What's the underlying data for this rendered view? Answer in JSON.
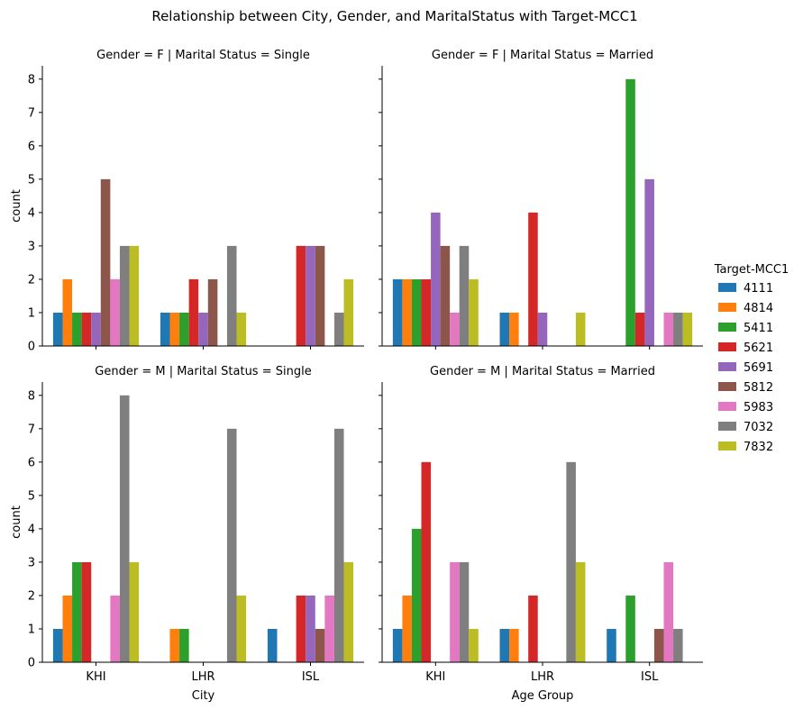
{
  "figure": {
    "title": "Relationship between City, Gender, and MaritalStatus with Target-MCC1"
  },
  "legend": {
    "title": "Target-MCC1",
    "placement": "right"
  },
  "series_colors": [
    "#1f77b4",
    "#ff7f0e",
    "#2ca02c",
    "#d62728",
    "#9467bd",
    "#8c564b",
    "#e377c2",
    "#7f7f7f",
    "#bcbd22"
  ],
  "chart_data": [
    {
      "type": "bar",
      "title": "Gender = F | Marital Status = Single",
      "xlabel": "",
      "ylabel": "count",
      "ylim": [
        0,
        8.4
      ],
      "yticks": [
        0,
        1,
        2,
        3,
        4,
        5,
        6,
        7,
        8
      ],
      "categories": [
        "KHI",
        "LHR",
        "ISL"
      ],
      "series": [
        {
          "name": "4111",
          "values": [
            1,
            1,
            0
          ]
        },
        {
          "name": "4814",
          "values": [
            2,
            1,
            0
          ]
        },
        {
          "name": "5411",
          "values": [
            1,
            1,
            0
          ]
        },
        {
          "name": "5621",
          "values": [
            1,
            2,
            3
          ]
        },
        {
          "name": "5691",
          "values": [
            1,
            1,
            3
          ]
        },
        {
          "name": "5812",
          "values": [
            5,
            2,
            3
          ]
        },
        {
          "name": "5983",
          "values": [
            2,
            0,
            0
          ]
        },
        {
          "name": "7032",
          "values": [
            3,
            3,
            1
          ]
        },
        {
          "name": "7832",
          "values": [
            3,
            1,
            2
          ]
        }
      ]
    },
    {
      "type": "bar",
      "title": "Gender = F | Marital Status = Married",
      "xlabel": "",
      "ylabel": "",
      "ylim": [
        0,
        8.4
      ],
      "yticks": [
        0,
        1,
        2,
        3,
        4,
        5,
        6,
        7,
        8
      ],
      "categories": [
        "KHI",
        "LHR",
        "ISL"
      ],
      "series": [
        {
          "name": "4111",
          "values": [
            2,
            1,
            0
          ]
        },
        {
          "name": "4814",
          "values": [
            2,
            1,
            0
          ]
        },
        {
          "name": "5411",
          "values": [
            2,
            0,
            8
          ]
        },
        {
          "name": "5621",
          "values": [
            2,
            4,
            1
          ]
        },
        {
          "name": "5691",
          "values": [
            4,
            1,
            5
          ]
        },
        {
          "name": "5812",
          "values": [
            3,
            0,
            0
          ]
        },
        {
          "name": "5983",
          "values": [
            1,
            0,
            1
          ]
        },
        {
          "name": "7032",
          "values": [
            3,
            0,
            1
          ]
        },
        {
          "name": "7832",
          "values": [
            2,
            1,
            1
          ]
        }
      ]
    },
    {
      "type": "bar",
      "title": "Gender = M | Marital Status = Single",
      "xlabel": "City",
      "ylabel": "count",
      "ylim": [
        0,
        8.4
      ],
      "yticks": [
        0,
        1,
        2,
        3,
        4,
        5,
        6,
        7,
        8
      ],
      "categories": [
        "KHI",
        "LHR",
        "ISL"
      ],
      "series": [
        {
          "name": "4111",
          "values": [
            1,
            0,
            1
          ]
        },
        {
          "name": "4814",
          "values": [
            2,
            1,
            0
          ]
        },
        {
          "name": "5411",
          "values": [
            3,
            1,
            0
          ]
        },
        {
          "name": "5621",
          "values": [
            3,
            0,
            2
          ]
        },
        {
          "name": "5691",
          "values": [
            0,
            0,
            2
          ]
        },
        {
          "name": "5812",
          "values": [
            0,
            0,
            1
          ]
        },
        {
          "name": "5983",
          "values": [
            2,
            0,
            2
          ]
        },
        {
          "name": "7032",
          "values": [
            8,
            7,
            7
          ]
        },
        {
          "name": "7832",
          "values": [
            3,
            2,
            3
          ]
        }
      ]
    },
    {
      "type": "bar",
      "title": "Gender = M | Marital Status = Married",
      "xlabel": "Age Group",
      "ylabel": "",
      "ylim": [
        0,
        8.4
      ],
      "yticks": [
        0,
        1,
        2,
        3,
        4,
        5,
        6,
        7,
        8
      ],
      "categories": [
        "KHI",
        "LHR",
        "ISL"
      ],
      "series": [
        {
          "name": "4111",
          "values": [
            1,
            1,
            1
          ]
        },
        {
          "name": "4814",
          "values": [
            2,
            1,
            0
          ]
        },
        {
          "name": "5411",
          "values": [
            4,
            0,
            2
          ]
        },
        {
          "name": "5621",
          "values": [
            6,
            2,
            0
          ]
        },
        {
          "name": "5691",
          "values": [
            0,
            0,
            0
          ]
        },
        {
          "name": "5812",
          "values": [
            0,
            0,
            1
          ]
        },
        {
          "name": "5983",
          "values": [
            3,
            0,
            3
          ]
        },
        {
          "name": "7032",
          "values": [
            3,
            6,
            1
          ]
        },
        {
          "name": "7832",
          "values": [
            1,
            3,
            0
          ]
        }
      ]
    }
  ]
}
